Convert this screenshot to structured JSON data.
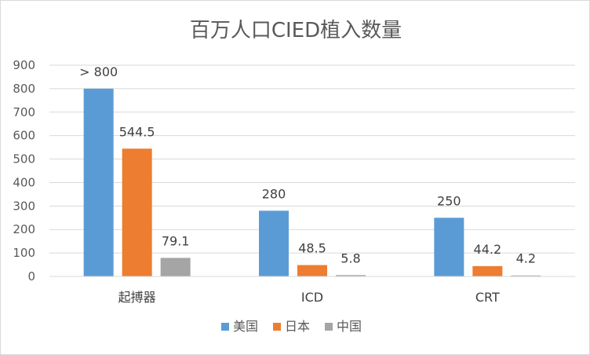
{
  "chart_data": {
    "type": "bar",
    "title": "百万人口CIED植入数量",
    "categories": [
      "起搏器",
      "ICD",
      "CRT"
    ],
    "series": [
      {
        "name": "美国",
        "color": "#5B9BD5",
        "values": [
          800,
          280,
          250
        ],
        "labels": [
          "> 800",
          "280",
          "250"
        ]
      },
      {
        "name": "日本",
        "color": "#ED7D31",
        "values": [
          544.5,
          48.5,
          44.2
        ],
        "labels": [
          "544.5",
          "48.5",
          "44.2"
        ]
      },
      {
        "name": "中国",
        "color": "#A5A5A5",
        "values": [
          79.1,
          5.8,
          4.2
        ],
        "labels": [
          "79.1",
          "5.8",
          "4.2"
        ]
      }
    ],
    "ylim": [
      0,
      900
    ],
    "yticks": [
      0,
      100,
      200,
      300,
      400,
      500,
      600,
      700,
      800,
      900
    ],
    "grid": true,
    "legend_position": "bottom"
  }
}
